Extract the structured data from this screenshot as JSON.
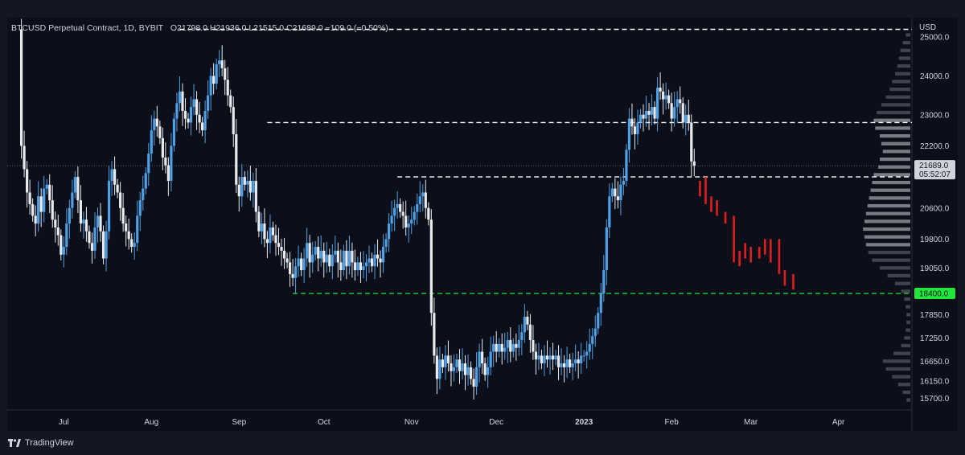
{
  "header": {
    "symbol": "BTCUSD Perpetual Contract, 1D, BYBIT",
    "ohlc": "O21798.0  H21936.0  L21515.0  C21689.0  −109.0 (−0.50%)"
  },
  "footer": {
    "brand": "TradingView"
  },
  "chart_data": {
    "type": "candlestick",
    "symbol": "BTCUSD Perpetual Contract",
    "interval": "1D",
    "exchange": "BYBIT",
    "y_unit": "USD",
    "ylim": [
      15400,
      25500
    ],
    "y_ticks": [
      25000.0,
      24000.0,
      23000.0,
      22200.0,
      20600.0,
      19800.0,
      19050.0,
      17850.0,
      17250.0,
      16650.0,
      16150.0,
      15700.0
    ],
    "x_ticks": [
      "Jul",
      "Aug",
      "Sep",
      "Oct",
      "Nov",
      "Dec",
      "2023",
      "Feb",
      "Mar",
      "Apr"
    ],
    "x_tick_days": [
      0,
      31,
      62,
      92,
      123,
      153,
      184,
      215,
      243,
      274
    ],
    "x_range_days": [
      -20,
      300
    ],
    "last_price": "21689.0",
    "countdown": "05:52:07",
    "colors": {
      "up": "#4ea1e6",
      "down": "#e8eaed",
      "projection": "#e01e1e",
      "support": "#22d030",
      "label_bg": "#d1d4dc",
      "support_label_bg": "#22e63a"
    },
    "levels": [
      {
        "price": 25200,
        "from_day": 41,
        "to_day": 300,
        "color": "#ffffff",
        "label": ""
      },
      {
        "price": 22800,
        "from_day": 72,
        "to_day": 300,
        "color": "#ffffff",
        "label": ""
      },
      {
        "price": 21400,
        "from_day": 118,
        "to_day": 300,
        "color": "#ffffff",
        "label": ""
      },
      {
        "price": 18400,
        "from_day": 81,
        "to_day": 300,
        "color": "#22d030",
        "label": "18400.0"
      }
    ],
    "close_path": [
      [
        -16,
        25200
      ],
      [
        -15,
        22200
      ],
      [
        -14,
        21600
      ],
      [
        -13,
        21000
      ],
      [
        -12,
        20700
      ],
      [
        -11,
        20400
      ],
      [
        -10,
        20200
      ],
      [
        -9,
        20900
      ],
      [
        -8,
        20500
      ],
      [
        -7,
        21100
      ],
      [
        -6,
        21200
      ],
      [
        -5,
        20800
      ],
      [
        -4,
        20300
      ],
      [
        -3,
        20100
      ],
      [
        -2,
        19900
      ],
      [
        -1,
        19400
      ],
      [
        0,
        19600
      ],
      [
        1,
        20200
      ],
      [
        2,
        20600
      ],
      [
        3,
        21000
      ],
      [
        4,
        21400
      ],
      [
        5,
        20800
      ],
      [
        6,
        20200
      ],
      [
        7,
        20300
      ],
      [
        8,
        20000
      ],
      [
        9,
        19700
      ],
      [
        10,
        19500
      ],
      [
        11,
        20100
      ],
      [
        12,
        20400
      ],
      [
        13,
        20000
      ],
      [
        14,
        19300
      ],
      [
        15,
        20000
      ],
      [
        16,
        21300
      ],
      [
        17,
        21600
      ],
      [
        18,
        21200
      ],
      [
        19,
        21000
      ],
      [
        20,
        20600
      ],
      [
        21,
        20200
      ],
      [
        22,
        20000
      ],
      [
        23,
        19800
      ],
      [
        24,
        19600
      ],
      [
        25,
        19700
      ],
      [
        26,
        20400
      ],
      [
        27,
        20800
      ],
      [
        28,
        21100
      ],
      [
        29,
        21500
      ],
      [
        30,
        22000
      ],
      [
        31,
        22600
      ],
      [
        32,
        22900
      ],
      [
        33,
        22700
      ],
      [
        34,
        22400
      ],
      [
        35,
        21900
      ],
      [
        36,
        21700
      ],
      [
        37,
        21300
      ],
      [
        38,
        22200
      ],
      [
        39,
        22900
      ],
      [
        40,
        23300
      ],
      [
        41,
        23600
      ],
      [
        42,
        23100
      ],
      [
        43,
        22900
      ],
      [
        44,
        22800
      ],
      [
        45,
        23200
      ],
      [
        46,
        23400
      ],
      [
        47,
        23000
      ],
      [
        48,
        22800
      ],
      [
        49,
        22600
      ],
      [
        50,
        23100
      ],
      [
        51,
        23500
      ],
      [
        52,
        24000
      ],
      [
        53,
        23800
      ],
      [
        54,
        24300
      ],
      [
        55,
        24400
      ],
      [
        56,
        24200
      ],
      [
        57,
        23900
      ],
      [
        58,
        23500
      ],
      [
        59,
        23200
      ],
      [
        60,
        22500
      ],
      [
        61,
        21200
      ],
      [
        62,
        20900
      ],
      [
        63,
        21400
      ],
      [
        64,
        21200
      ],
      [
        65,
        21300
      ],
      [
        66,
        21000
      ],
      [
        67,
        21300
      ],
      [
        68,
        20500
      ],
      [
        69,
        20000
      ],
      [
        70,
        20200
      ],
      [
        71,
        19800
      ],
      [
        72,
        19700
      ],
      [
        73,
        20100
      ],
      [
        74,
        19900
      ],
      [
        75,
        19700
      ],
      [
        76,
        19600
      ],
      [
        77,
        19500
      ],
      [
        78,
        19300
      ],
      [
        79,
        19200
      ],
      [
        80,
        18900
      ],
      [
        81,
        18800
      ],
      [
        82,
        19100
      ],
      [
        83,
        19300
      ],
      [
        84,
        19000
      ],
      [
        85,
        19300
      ],
      [
        86,
        19700
      ],
      [
        87,
        19200
      ],
      [
        88,
        19400
      ],
      [
        89,
        19600
      ],
      [
        90,
        19300
      ],
      [
        91,
        19500
      ],
      [
        92,
        19200
      ],
      [
        93,
        19400
      ],
      [
        94,
        19100
      ],
      [
        95,
        19400
      ],
      [
        96,
        19500
      ],
      [
        97,
        19200
      ],
      [
        98,
        19000
      ],
      [
        99,
        19500
      ],
      [
        100,
        19100
      ],
      [
        101,
        19500
      ],
      [
        102,
        19200
      ],
      [
        103,
        19000
      ],
      [
        104,
        19200
      ],
      [
        105,
        19000
      ],
      [
        106,
        19100
      ],
      [
        107,
        19200
      ],
      [
        108,
        19300
      ],
      [
        109,
        19100
      ],
      [
        110,
        19400
      ],
      [
        111,
        19300
      ],
      [
        112,
        19200
      ],
      [
        113,
        19600
      ],
      [
        114,
        19800
      ],
      [
        115,
        20200
      ],
      [
        116,
        20400
      ],
      [
        117,
        20600
      ],
      [
        118,
        20700
      ],
      [
        119,
        20500
      ],
      [
        120,
        20400
      ],
      [
        121,
        20100
      ],
      [
        122,
        20200
      ],
      [
        123,
        20300
      ],
      [
        124,
        20500
      ],
      [
        125,
        20700
      ],
      [
        126,
        20900
      ],
      [
        127,
        21000
      ],
      [
        128,
        20600
      ],
      [
        129,
        20300
      ],
      [
        130,
        17900
      ],
      [
        131,
        16800
      ],
      [
        132,
        16200
      ],
      [
        133,
        16700
      ],
      [
        134,
        16500
      ],
      [
        135,
        16800
      ],
      [
        136,
        16600
      ],
      [
        137,
        16400
      ],
      [
        138,
        16500
      ],
      [
        139,
        16700
      ],
      [
        140,
        16400
      ],
      [
        141,
        16600
      ],
      [
        142,
        16300
      ],
      [
        143,
        16500
      ],
      [
        144,
        16200
      ],
      [
        145,
        16000
      ],
      [
        146,
        16500
      ],
      [
        147,
        16900
      ],
      [
        148,
        16600
      ],
      [
        149,
        16300
      ],
      [
        150,
        16500
      ],
      [
        151,
        16900
      ],
      [
        152,
        17100
      ],
      [
        153,
        16900
      ],
      [
        154,
        17100
      ],
      [
        155,
        16900
      ],
      [
        156,
        17000
      ],
      [
        157,
        17200
      ],
      [
        158,
        16900
      ],
      [
        159,
        17100
      ],
      [
        160,
        17000
      ],
      [
        161,
        17200
      ],
      [
        162,
        17400
      ],
      [
        163,
        17800
      ],
      [
        164,
        17600
      ],
      [
        165,
        17200
      ],
      [
        166,
        16900
      ],
      [
        167,
        16700
      ],
      [
        168,
        16800
      ],
      [
        169,
        16600
      ],
      [
        170,
        16800
      ],
      [
        171,
        16700
      ],
      [
        172,
        16800
      ],
      [
        173,
        16700
      ],
      [
        174,
        16800
      ],
      [
        175,
        16500
      ],
      [
        176,
        16600
      ],
      [
        177,
        16500
      ],
      [
        178,
        16700
      ],
      [
        179,
        16500
      ],
      [
        180,
        16600
      ],
      [
        181,
        16700
      ],
      [
        182,
        16600
      ],
      [
        183,
        16800
      ],
      [
        184,
        16800
      ],
      [
        185,
        16900
      ],
      [
        186,
        17100
      ],
      [
        187,
        17300
      ],
      [
        188,
        17500
      ],
      [
        189,
        17900
      ],
      [
        190,
        18400
      ],
      [
        191,
        19000
      ],
      [
        192,
        20100
      ],
      [
        193,
        20900
      ],
      [
        194,
        21100
      ],
      [
        195,
        20900
      ],
      [
        196,
        20800
      ],
      [
        197,
        21200
      ],
      [
        198,
        21300
      ],
      [
        199,
        22100
      ],
      [
        200,
        22900
      ],
      [
        201,
        22700
      ],
      [
        202,
        22500
      ],
      [
        203,
        22800
      ],
      [
        204,
        23000
      ],
      [
        205,
        22900
      ],
      [
        206,
        23100
      ],
      [
        207,
        23000
      ],
      [
        208,
        23200
      ],
      [
        209,
        22900
      ],
      [
        210,
        23700
      ],
      [
        211,
        23600
      ],
      [
        212,
        23400
      ],
      [
        213,
        23500
      ],
      [
        214,
        23300
      ],
      [
        215,
        22900
      ],
      [
        216,
        23200
      ],
      [
        217,
        23400
      ],
      [
        218,
        23300
      ],
      [
        219,
        22800
      ],
      [
        220,
        23000
      ],
      [
        221,
        22800
      ],
      [
        222,
        21800
      ],
      [
        223,
        21689
      ]
    ],
    "projection_bars": [
      [
        225,
        21300,
        20900
      ],
      [
        227,
        21400,
        20700
      ],
      [
        229,
        20900,
        20500
      ],
      [
        231,
        20800,
        20400
      ],
      [
        234,
        20500,
        20200
      ],
      [
        237,
        20400,
        19200
      ],
      [
        239,
        19500,
        19100
      ],
      [
        241,
        19700,
        19300
      ],
      [
        243,
        19600,
        19200
      ],
      [
        246,
        19600,
        19300
      ],
      [
        248,
        19800,
        19400
      ],
      [
        250,
        19800,
        19200
      ],
      [
        253,
        19800,
        18900
      ],
      [
        255,
        19000,
        18600
      ],
      [
        258,
        18900,
        18500
      ]
    ],
    "volume_profile": [
      [
        25000,
        6
      ],
      [
        24800,
        10
      ],
      [
        24600,
        13
      ],
      [
        24400,
        15
      ],
      [
        24200,
        17
      ],
      [
        24000,
        20
      ],
      [
        23800,
        24
      ],
      [
        23600,
        27
      ],
      [
        23400,
        32
      ],
      [
        23200,
        38
      ],
      [
        23000,
        44
      ],
      [
        22800,
        48
      ],
      [
        22600,
        46
      ],
      [
        22400,
        40
      ],
      [
        22200,
        38
      ],
      [
        22000,
        36
      ],
      [
        21800,
        40
      ],
      [
        21600,
        42
      ],
      [
        21400,
        48
      ],
      [
        21200,
        50
      ],
      [
        21000,
        52
      ],
      [
        20800,
        54
      ],
      [
        20600,
        56
      ],
      [
        20400,
        58
      ],
      [
        20200,
        60
      ],
      [
        20000,
        62
      ],
      [
        19800,
        60
      ],
      [
        19600,
        58
      ],
      [
        19400,
        55
      ],
      [
        19200,
        50
      ],
      [
        19000,
        40
      ],
      [
        18800,
        30
      ],
      [
        18600,
        20
      ],
      [
        18400,
        12
      ],
      [
        18200,
        8
      ],
      [
        18000,
        6
      ],
      [
        17800,
        5
      ],
      [
        17600,
        5
      ],
      [
        17400,
        6
      ],
      [
        17200,
        8
      ],
      [
        17000,
        12
      ],
      [
        16800,
        22
      ],
      [
        16600,
        36
      ],
      [
        16400,
        32
      ],
      [
        16200,
        24
      ],
      [
        16000,
        16
      ],
      [
        15800,
        10
      ],
      [
        15600,
        5
      ]
    ]
  }
}
